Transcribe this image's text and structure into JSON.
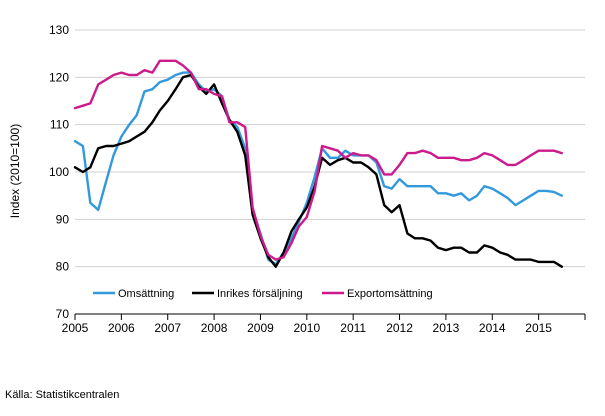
{
  "chart_data": {
    "type": "line",
    "ylabel": "Index (2010=100)",
    "xlabel": "",
    "title": "",
    "ylim": [
      70,
      130
    ],
    "yticks": [
      70,
      80,
      90,
      100,
      110,
      120,
      130
    ],
    "xlim": [
      2005,
      2016
    ],
    "xticks": [
      "2005",
      "2006",
      "2007",
      "2008",
      "2009",
      "2010",
      "2011",
      "2012",
      "2013",
      "2014",
      "2015"
    ],
    "grid": "horizontal",
    "legend_position": "bottom-inside",
    "series": [
      {
        "name": "Omsättning",
        "color": "#3399dd",
        "points": [
          [
            2005.0,
            106.5
          ],
          [
            2005.17,
            105.5
          ],
          [
            2005.33,
            93.5
          ],
          [
            2005.5,
            92.0
          ],
          [
            2005.67,
            98.0
          ],
          [
            2005.83,
            103.5
          ],
          [
            2006.0,
            107.5
          ],
          [
            2006.17,
            110.0
          ],
          [
            2006.33,
            112.0
          ],
          [
            2006.5,
            117.0
          ],
          [
            2006.67,
            117.5
          ],
          [
            2006.83,
            119.0
          ],
          [
            2007.0,
            119.5
          ],
          [
            2007.17,
            120.5
          ],
          [
            2007.33,
            121.0
          ],
          [
            2007.5,
            121.0
          ],
          [
            2007.67,
            118.5
          ],
          [
            2007.83,
            117.0
          ],
          [
            2008.0,
            117.5
          ],
          [
            2008.17,
            116.0
          ],
          [
            2008.33,
            111.0
          ],
          [
            2008.5,
            109.5
          ],
          [
            2008.67,
            105.0
          ],
          [
            2008.83,
            92.0
          ],
          [
            2009.0,
            87.0
          ],
          [
            2009.17,
            81.5
          ],
          [
            2009.33,
            80.5
          ],
          [
            2009.5,
            83.0
          ],
          [
            2009.67,
            86.0
          ],
          [
            2009.83,
            89.5
          ],
          [
            2010.0,
            93.5
          ],
          [
            2010.17,
            99.0
          ],
          [
            2010.33,
            105.0
          ],
          [
            2010.5,
            103.0
          ],
          [
            2010.67,
            103.0
          ],
          [
            2010.83,
            104.5
          ],
          [
            2011.0,
            103.5
          ],
          [
            2011.17,
            103.5
          ],
          [
            2011.33,
            103.5
          ],
          [
            2011.5,
            102.0
          ],
          [
            2011.67,
            97.0
          ],
          [
            2011.83,
            96.5
          ],
          [
            2012.0,
            98.5
          ],
          [
            2012.17,
            97.0
          ],
          [
            2012.33,
            97.0
          ],
          [
            2012.5,
            97.0
          ],
          [
            2012.67,
            97.0
          ],
          [
            2012.83,
            95.5
          ],
          [
            2013.0,
            95.5
          ],
          [
            2013.17,
            95.0
          ],
          [
            2013.33,
            95.5
          ],
          [
            2013.5,
            94.0
          ],
          [
            2013.67,
            95.0
          ],
          [
            2013.83,
            97.0
          ],
          [
            2014.0,
            96.5
          ],
          [
            2014.17,
            95.5
          ],
          [
            2014.33,
            94.5
          ],
          [
            2014.5,
            93.0
          ],
          [
            2014.67,
            94.0
          ],
          [
            2014.83,
            95.0
          ],
          [
            2015.0,
            96.0
          ],
          [
            2015.17,
            96.0
          ],
          [
            2015.33,
            95.8
          ],
          [
            2015.5,
            95.0
          ]
        ]
      },
      {
        "name": "Inrikes försäljning",
        "color": "#000000",
        "points": [
          [
            2005.0,
            101.0
          ],
          [
            2005.17,
            100.0
          ],
          [
            2005.33,
            101.0
          ],
          [
            2005.5,
            105.0
          ],
          [
            2005.67,
            105.5
          ],
          [
            2005.83,
            105.5
          ],
          [
            2006.0,
            106.0
          ],
          [
            2006.17,
            106.5
          ],
          [
            2006.33,
            107.5
          ],
          [
            2006.5,
            108.5
          ],
          [
            2006.67,
            110.5
          ],
          [
            2006.83,
            113.0
          ],
          [
            2007.0,
            115.0
          ],
          [
            2007.17,
            117.5
          ],
          [
            2007.33,
            120.0
          ],
          [
            2007.5,
            120.5
          ],
          [
            2007.67,
            118.0
          ],
          [
            2007.83,
            116.5
          ],
          [
            2008.0,
            118.5
          ],
          [
            2008.17,
            114.5
          ],
          [
            2008.33,
            111.0
          ],
          [
            2008.5,
            108.5
          ],
          [
            2008.67,
            103.5
          ],
          [
            2008.83,
            91.0
          ],
          [
            2009.0,
            86.0
          ],
          [
            2009.17,
            82.0
          ],
          [
            2009.33,
            80.0
          ],
          [
            2009.5,
            83.0
          ],
          [
            2009.67,
            87.5
          ],
          [
            2009.83,
            90.0
          ],
          [
            2010.0,
            92.5
          ],
          [
            2010.17,
            97.0
          ],
          [
            2010.33,
            103.0
          ],
          [
            2010.5,
            101.5
          ],
          [
            2010.67,
            102.5
          ],
          [
            2010.83,
            103.0
          ],
          [
            2011.0,
            102.0
          ],
          [
            2011.17,
            102.0
          ],
          [
            2011.33,
            101.0
          ],
          [
            2011.5,
            99.5
          ],
          [
            2011.67,
            93.0
          ],
          [
            2011.83,
            91.5
          ],
          [
            2012.0,
            93.0
          ],
          [
            2012.17,
            87.0
          ],
          [
            2012.33,
            86.0
          ],
          [
            2012.5,
            86.0
          ],
          [
            2012.67,
            85.5
          ],
          [
            2012.83,
            84.0
          ],
          [
            2013.0,
            83.5
          ],
          [
            2013.17,
            84.0
          ],
          [
            2013.33,
            84.0
          ],
          [
            2013.5,
            83.0
          ],
          [
            2013.67,
            83.0
          ],
          [
            2013.83,
            84.5
          ],
          [
            2014.0,
            84.0
          ],
          [
            2014.17,
            83.0
          ],
          [
            2014.33,
            82.5
          ],
          [
            2014.5,
            81.5
          ],
          [
            2014.67,
            81.5
          ],
          [
            2014.83,
            81.5
          ],
          [
            2015.0,
            81.0
          ],
          [
            2015.17,
            81.0
          ],
          [
            2015.33,
            81.0
          ],
          [
            2015.5,
            80.0
          ]
        ]
      },
      {
        "name": "Exportomsättning",
        "color": "#cc1a8c",
        "points": [
          [
            2005.0,
            113.5
          ],
          [
            2005.17,
            114.0
          ],
          [
            2005.33,
            114.5
          ],
          [
            2005.5,
            118.5
          ],
          [
            2005.67,
            119.5
          ],
          [
            2005.83,
            120.5
          ],
          [
            2006.0,
            121.0
          ],
          [
            2006.17,
            120.5
          ],
          [
            2006.33,
            120.5
          ],
          [
            2006.5,
            121.5
          ],
          [
            2006.67,
            121.0
          ],
          [
            2006.83,
            123.5
          ],
          [
            2007.0,
            123.5
          ],
          [
            2007.17,
            123.5
          ],
          [
            2007.33,
            122.5
          ],
          [
            2007.5,
            121.0
          ],
          [
            2007.67,
            117.5
          ],
          [
            2007.83,
            117.5
          ],
          [
            2008.0,
            116.5
          ],
          [
            2008.17,
            116.0
          ],
          [
            2008.33,
            110.5
          ],
          [
            2008.5,
            110.5
          ],
          [
            2008.67,
            109.5
          ],
          [
            2008.83,
            92.5
          ],
          [
            2009.0,
            86.5
          ],
          [
            2009.17,
            82.5
          ],
          [
            2009.33,
            81.5
          ],
          [
            2009.5,
            82.0
          ],
          [
            2009.67,
            85.0
          ],
          [
            2009.83,
            88.5
          ],
          [
            2010.0,
            90.5
          ],
          [
            2010.17,
            96.0
          ],
          [
            2010.33,
            105.5
          ],
          [
            2010.5,
            105.0
          ],
          [
            2010.67,
            104.5
          ],
          [
            2010.83,
            103.0
          ],
          [
            2011.0,
            104.0
          ],
          [
            2011.17,
            103.5
          ],
          [
            2011.33,
            103.5
          ],
          [
            2011.5,
            102.5
          ],
          [
            2011.67,
            99.5
          ],
          [
            2011.83,
            99.5
          ],
          [
            2012.0,
            101.5
          ],
          [
            2012.17,
            104.0
          ],
          [
            2012.33,
            104.0
          ],
          [
            2012.5,
            104.5
          ],
          [
            2012.67,
            104.0
          ],
          [
            2012.83,
            103.0
          ],
          [
            2013.0,
            103.0
          ],
          [
            2013.17,
            103.0
          ],
          [
            2013.33,
            102.5
          ],
          [
            2013.5,
            102.5
          ],
          [
            2013.67,
            103.0
          ],
          [
            2013.83,
            104.0
          ],
          [
            2014.0,
            103.5
          ],
          [
            2014.17,
            102.5
          ],
          [
            2014.33,
            101.5
          ],
          [
            2014.5,
            101.5
          ],
          [
            2014.67,
            102.5
          ],
          [
            2014.83,
            103.5
          ],
          [
            2015.0,
            104.5
          ],
          [
            2015.17,
            104.5
          ],
          [
            2015.33,
            104.5
          ],
          [
            2015.5,
            104.0
          ]
        ]
      }
    ]
  },
  "source_text": "Källa: Statistikcentralen"
}
